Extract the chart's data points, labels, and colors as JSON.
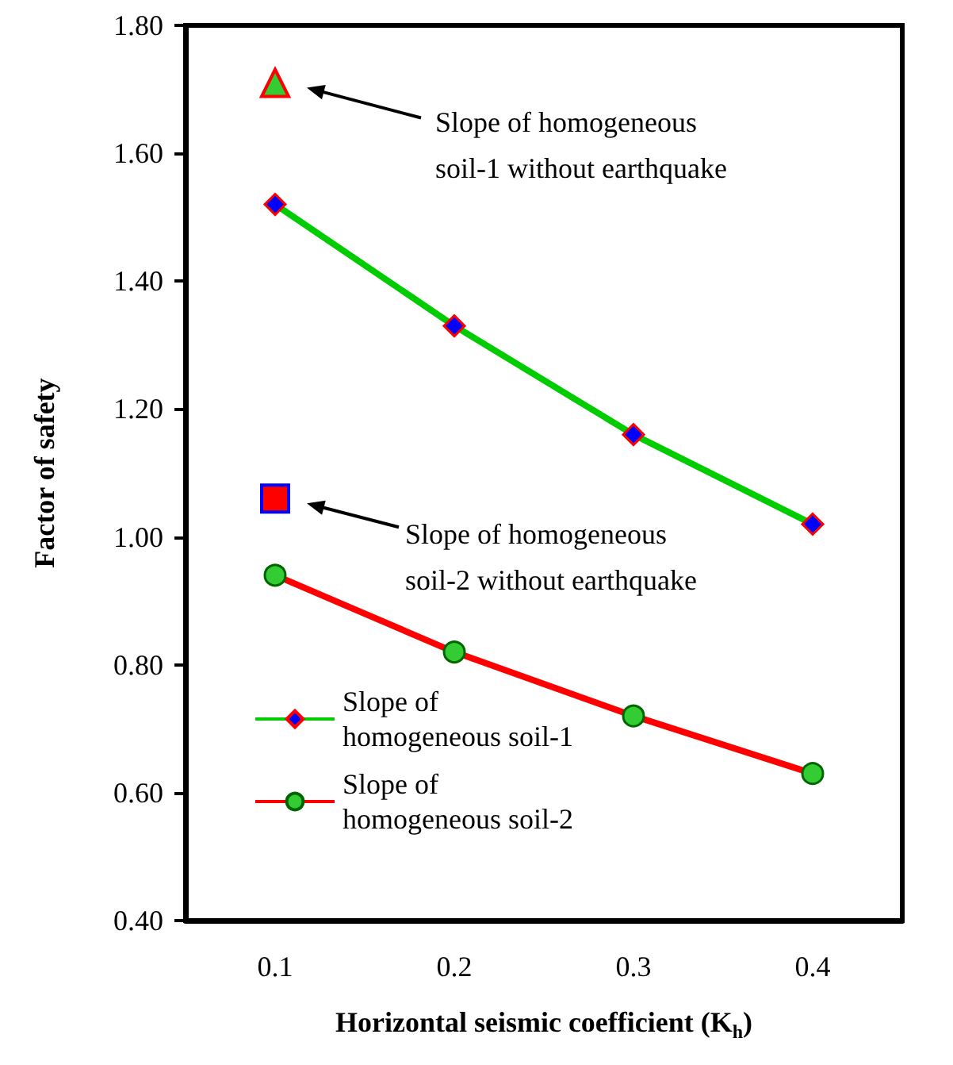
{
  "chart_data": {
    "type": "line",
    "categories": [
      "0.1",
      "0.2",
      "0.3",
      "0.4"
    ],
    "xlabel": "Horizontal seismic coefficient (K$_{h}$)",
    "ylabel": "Factor of safety",
    "ylim": [
      0.4,
      1.8
    ],
    "yticks": [
      {
        "value": 0.4,
        "label": "0.40"
      },
      {
        "value": 0.6,
        "label": "0.60"
      },
      {
        "value": 0.8,
        "label": "0.80"
      },
      {
        "value": 1.0,
        "label": "1.00"
      },
      {
        "value": 1.2,
        "label": "1.20"
      },
      {
        "value": 1.4,
        "label": "1.40"
      },
      {
        "value": 1.6,
        "label": "1.60"
      },
      {
        "value": 1.8,
        "label": "1.80"
      }
    ],
    "series": [
      {
        "name": "Slope of homogeneous soil-1",
        "color": "#00cc00",
        "colors": [
          "#0000ff",
          "#0000ff",
          "#0000ff",
          "#0000ff"
        ],
        "marker": "diamond",
        "values": [
          1.52,
          1.33,
          1.16,
          1.02
        ]
      },
      {
        "name": "Slope of homogeneous soil-2",
        "color": "#ff0000",
        "colors": [
          "#33cc33",
          "#33cc33",
          "#33cc33",
          "#33cc33"
        ],
        "marker": "circle",
        "values": [
          0.94,
          0.82,
          0.72,
          0.63
        ]
      },
      {
        "type": "scatter",
        "color": "#33cc33",
        "marker": "triangle",
        "x": [
          "0.1"
        ],
        "values": [
          1.71
        ]
      },
      {
        "type": "scatter",
        "color": "#ff0000",
        "marker": "square",
        "x": [
          "0.1"
        ],
        "values": [
          1.06
        ]
      }
    ],
    "annotations": [
      "Slope of homogeneous soil-1 without earthquake",
      "Slope of homogeneous soil-2 without earthquake"
    ],
    "legend": "bottom left",
    "grid": false,
    "line_style": "solid"
  }
}
